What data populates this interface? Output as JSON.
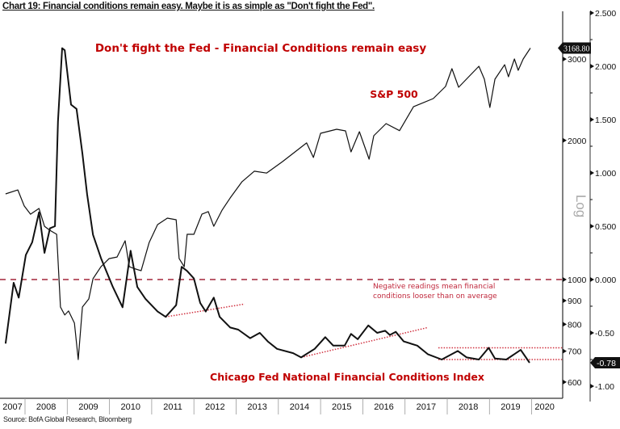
{
  "title": "Chart 19: Financial conditions remain easy. Maybe it is as simple as \"Don't fight the Fed\".",
  "source": "Source: BofA Global Research, Bloomberg",
  "chart_data": {
    "type": "line",
    "headline": "Don't fight the Fed - Financial Conditions remain easy",
    "annotation": "Negative readings mean financial conditions looser than on average",
    "x_tick_labels": [
      "2007",
      "2008",
      "2009",
      "2010",
      "2011",
      "2012",
      "2013",
      "2014",
      "2015",
      "2016",
      "2017",
      "2018",
      "2019",
      "2020"
    ],
    "xlim": [
      2007.5,
      2020.75
    ],
    "left_axis": {
      "scale": "log",
      "label": "Log",
      "ticks": [
        600,
        700,
        800,
        900,
        1000,
        2000,
        3000
      ],
      "tick_labels": [
        "600",
        "700",
        "800",
        "900",
        "1000",
        "2000",
        "3000"
      ],
      "ylim": [
        590,
        3500
      ]
    },
    "right_axis": {
      "scale": "linear",
      "ticks": [
        2.5,
        2.0,
        1.5,
        1.0,
        0.5,
        0.0,
        -0.5,
        -1.0
      ],
      "tick_labels": [
        "2.500",
        "2.000",
        "1.500",
        "1.000",
        "0.500",
        "0.000",
        "-0.50",
        "-1.00"
      ],
      "ylim": [
        -1.1,
        2.5
      ]
    },
    "colors": {
      "line": "#111111",
      "annotation": "#c00000",
      "zero_line": "#a3263a",
      "trend": "#d0303f"
    },
    "series": [
      {
        "name": "S&P 500",
        "axis": "left",
        "last_value_label": "3168.80",
        "points": [
          [
            2007.54,
            1532
          ],
          [
            2007.83,
            1563
          ],
          [
            2007.98,
            1443
          ],
          [
            2008.13,
            1385
          ],
          [
            2008.33,
            1425
          ],
          [
            2008.46,
            1304
          ],
          [
            2008.59,
            1278
          ],
          [
            2008.75,
            1253
          ],
          [
            2008.84,
            872
          ],
          [
            2008.94,
            838
          ],
          [
            2009.03,
            855
          ],
          [
            2009.17,
            805
          ],
          [
            2009.26,
            671
          ],
          [
            2009.36,
            872
          ],
          [
            2009.51,
            908
          ],
          [
            2009.61,
            1004
          ],
          [
            2009.8,
            1066
          ],
          [
            2009.99,
            1110
          ],
          [
            2010.18,
            1119
          ],
          [
            2010.37,
            1213
          ],
          [
            2010.47,
            1066
          ],
          [
            2010.56,
            1058
          ],
          [
            2010.75,
            1045
          ],
          [
            2010.94,
            1203
          ],
          [
            2011.14,
            1315
          ],
          [
            2011.37,
            1358
          ],
          [
            2011.58,
            1347
          ],
          [
            2011.65,
            1110
          ],
          [
            2011.77,
            1066
          ],
          [
            2011.84,
            1253
          ],
          [
            2012.0,
            1253
          ],
          [
            2012.19,
            1385
          ],
          [
            2012.34,
            1403
          ],
          [
            2012.47,
            1304
          ],
          [
            2012.67,
            1414
          ],
          [
            2012.86,
            1502
          ],
          [
            2013.14,
            1628
          ],
          [
            2013.43,
            1716
          ],
          [
            2013.72,
            1700
          ],
          [
            2014.1,
            1800
          ],
          [
            2014.67,
            1975
          ],
          [
            2014.83,
            1837
          ],
          [
            2015.0,
            2072
          ],
          [
            2015.38,
            2114
          ],
          [
            2015.59,
            2097
          ],
          [
            2015.72,
            1889
          ],
          [
            2015.92,
            2089
          ],
          [
            2016.15,
            1822
          ],
          [
            2016.26,
            2047
          ],
          [
            2016.55,
            2175
          ],
          [
            2016.87,
            2100
          ],
          [
            2017.2,
            2366
          ],
          [
            2017.67,
            2464
          ],
          [
            2017.96,
            2617
          ],
          [
            2018.11,
            2860
          ],
          [
            2018.27,
            2607
          ],
          [
            2018.75,
            2894
          ],
          [
            2018.88,
            2714
          ],
          [
            2019.01,
            2357
          ],
          [
            2019.13,
            2714
          ],
          [
            2019.36,
            2917
          ],
          [
            2019.45,
            2747
          ],
          [
            2019.59,
            3001
          ],
          [
            2019.68,
            2837
          ],
          [
            2019.8,
            3001
          ],
          [
            2019.97,
            3168.8
          ]
        ]
      },
      {
        "name": "Chicago Fed National Financial Conditions Index",
        "axis": "right",
        "last_value_label": "-0.78",
        "points": [
          [
            2007.54,
            -0.6
          ],
          [
            2007.73,
            -0.03
          ],
          [
            2007.85,
            -0.17
          ],
          [
            2008.02,
            0.23
          ],
          [
            2008.17,
            0.35
          ],
          [
            2008.33,
            0.63
          ],
          [
            2008.46,
            0.25
          ],
          [
            2008.59,
            0.48
          ],
          [
            2008.71,
            0.5
          ],
          [
            2008.78,
            1.48
          ],
          [
            2008.88,
            2.17
          ],
          [
            2008.94,
            2.15
          ],
          [
            2009.09,
            1.64
          ],
          [
            2009.22,
            1.6
          ],
          [
            2009.36,
            1.18
          ],
          [
            2009.47,
            0.8
          ],
          [
            2009.61,
            0.42
          ],
          [
            2009.8,
            0.2
          ],
          [
            2010.08,
            -0.07
          ],
          [
            2010.31,
            -0.26
          ],
          [
            2010.5,
            0.27
          ],
          [
            2010.66,
            -0.07
          ],
          [
            2010.85,
            -0.18
          ],
          [
            2011.14,
            -0.3
          ],
          [
            2011.33,
            -0.35
          ],
          [
            2011.58,
            -0.24
          ],
          [
            2011.71,
            0.12
          ],
          [
            2011.84,
            0.08
          ],
          [
            2012.0,
            0.01
          ],
          [
            2012.15,
            -0.22
          ],
          [
            2012.28,
            -0.3
          ],
          [
            2012.47,
            -0.17
          ],
          [
            2012.61,
            -0.35
          ],
          [
            2012.86,
            -0.45
          ],
          [
            2013.05,
            -0.47
          ],
          [
            2013.33,
            -0.55
          ],
          [
            2013.56,
            -0.5
          ],
          [
            2013.75,
            -0.58
          ],
          [
            2013.97,
            -0.65
          ],
          [
            2014.35,
            -0.69
          ],
          [
            2014.54,
            -0.73
          ],
          [
            2014.86,
            -0.65
          ],
          [
            2015.11,
            -0.54
          ],
          [
            2015.3,
            -0.62
          ],
          [
            2015.57,
            -0.62
          ],
          [
            2015.72,
            -0.51
          ],
          [
            2015.88,
            -0.56
          ],
          [
            2016.13,
            -0.43
          ],
          [
            2016.34,
            -0.5
          ],
          [
            2016.53,
            -0.48
          ],
          [
            2016.64,
            -0.52
          ],
          [
            2016.78,
            -0.49
          ],
          [
            2016.97,
            -0.58
          ],
          [
            2017.29,
            -0.62
          ],
          [
            2017.54,
            -0.7
          ],
          [
            2017.87,
            -0.75
          ],
          [
            2018.25,
            -0.67
          ],
          [
            2018.46,
            -0.73
          ],
          [
            2018.75,
            -0.75
          ],
          [
            2018.98,
            -0.64
          ],
          [
            2019.13,
            -0.74
          ],
          [
            2019.4,
            -0.75
          ],
          [
            2019.74,
            -0.66
          ],
          [
            2019.95,
            -0.78
          ]
        ]
      }
    ],
    "reference_lines": [
      {
        "kind": "zero",
        "axis": "right",
        "value": 0.0,
        "style": "dashed"
      },
      {
        "kind": "trend",
        "axis": "right",
        "from": [
          2011.33,
          -0.35
        ],
        "to": [
          2013.2,
          -0.23
        ],
        "style": "dotted"
      },
      {
        "kind": "trend",
        "axis": "right",
        "from": [
          2014.54,
          -0.73
        ],
        "to": [
          2017.54,
          -0.45
        ],
        "style": "dotted"
      },
      {
        "kind": "range-top",
        "axis": "right",
        "from": [
          2017.79,
          -0.64
        ],
        "to": [
          2020.75,
          -0.64
        ],
        "style": "dotted"
      },
      {
        "kind": "range-bottom",
        "axis": "right",
        "from": [
          2017.79,
          -0.75
        ],
        "to": [
          2020.75,
          -0.75
        ],
        "style": "dotted"
      }
    ]
  }
}
